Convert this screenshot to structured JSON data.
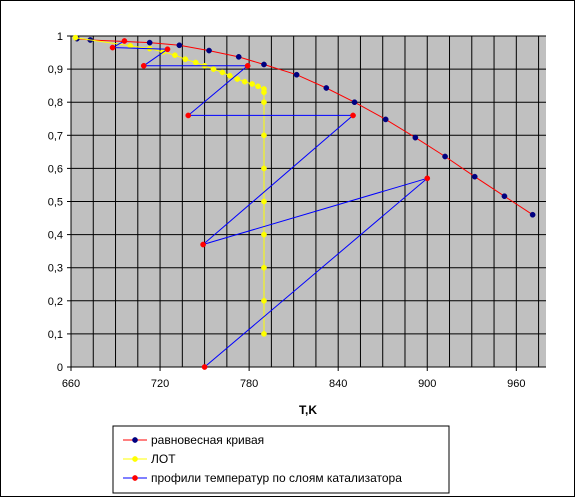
{
  "chart_data": {
    "type": "line",
    "title": "",
    "xlabel": "T,K",
    "ylabel": "",
    "xlim": [
      660,
      980
    ],
    "ylim": [
      0,
      1
    ],
    "x_ticks": [
      "660",
      "720",
      "780",
      "840",
      "900",
      "960"
    ],
    "x_tick_values": [
      660,
      720,
      780,
      840,
      900,
      960
    ],
    "y_ticks": [
      "0",
      "0,1",
      "0,2",
      "0,3",
      "0,4",
      "0,5",
      "0,6",
      "0,7",
      "0,8",
      "0,9",
      "1"
    ],
    "y_tick_values": [
      0,
      0.1,
      0.2,
      0.3,
      0.4,
      0.5,
      0.6,
      0.7,
      0.8,
      0.9,
      1.0
    ],
    "x_minor_step": 15,
    "grid": true,
    "plot_background": "#c0c0c0",
    "legend_position": "bottom",
    "series": [
      {
        "name": "равновесная кривая",
        "line_color": "#ff0000",
        "marker_color": "#000080",
        "points": [
          [
            664,
            0.992
          ],
          [
            673,
            0.988
          ],
          [
            713,
            0.98
          ],
          [
            733,
            0.972
          ],
          [
            753,
            0.956
          ],
          [
            773,
            0.937
          ],
          [
            790,
            0.914
          ],
          [
            812,
            0.883
          ],
          [
            832,
            0.843
          ],
          [
            851,
            0.8
          ],
          [
            872,
            0.748
          ],
          [
            892,
            0.693
          ],
          [
            912,
            0.636
          ],
          [
            932,
            0.575
          ],
          [
            952,
            0.516
          ],
          [
            971,
            0.46
          ]
        ]
      },
      {
        "name": "ЛОТ",
        "line_color": "#ffff00",
        "marker_color": "#ffff00",
        "points": [
          [
            663,
            0.995
          ],
          [
            700,
            0.97
          ],
          [
            713,
            0.962
          ],
          [
            722,
            0.952
          ],
          [
            730,
            0.942
          ],
          [
            737,
            0.93
          ],
          [
            744,
            0.92
          ],
          [
            750,
            0.91
          ],
          [
            756,
            0.9
          ],
          [
            762,
            0.89
          ],
          [
            767,
            0.88
          ],
          [
            772,
            0.87
          ],
          [
            777,
            0.862
          ],
          [
            782,
            0.855
          ],
          [
            786,
            0.848
          ],
          [
            790,
            0.84
          ],
          [
            790,
            0.83
          ],
          [
            790,
            0.8
          ],
          [
            790,
            0.7
          ],
          [
            790,
            0.6
          ],
          [
            790,
            0.5
          ],
          [
            790,
            0.4
          ],
          [
            790,
            0.3
          ],
          [
            790,
            0.2
          ],
          [
            790,
            0.1
          ]
        ]
      },
      {
        "name": "профили температур по слоям катализатора",
        "line_color": "#0000ff",
        "marker_color": "#ff0000",
        "points": [
          [
            750,
            0.0
          ],
          [
            900,
            0.57
          ],
          [
            749,
            0.37
          ],
          [
            850,
            0.76
          ],
          [
            739,
            0.76
          ],
          [
            779,
            0.91
          ],
          [
            709,
            0.91
          ],
          [
            725,
            0.96
          ],
          [
            688,
            0.965
          ],
          [
            696,
            0.985
          ]
        ]
      }
    ]
  }
}
